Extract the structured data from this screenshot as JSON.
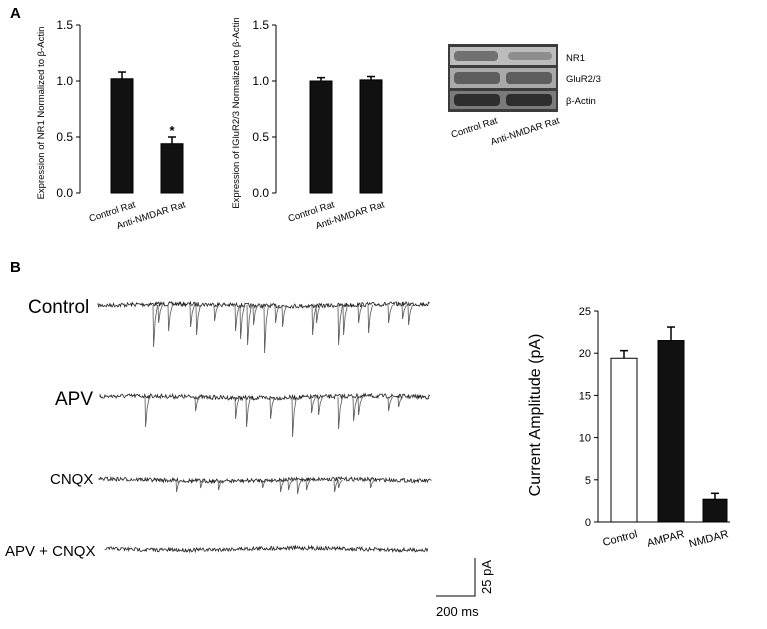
{
  "panels": {
    "a_label": "A",
    "b_label": "B"
  },
  "chart_data": [
    {
      "type": "bar",
      "ylabel": "Expression of NR1 Normalized to β-Actin",
      "categories": [
        "Control Rat",
        "Anti-NMDAR Rat"
      ],
      "values": [
        1.02,
        0.44
      ],
      "errors": [
        0.06,
        0.06
      ],
      "ylim": [
        0,
        1.5
      ],
      "yticks": [
        "0.0",
        "0.5",
        "1.0",
        "1.5"
      ],
      "annotations": [
        "",
        "*"
      ],
      "bar_colors": [
        "#111111",
        "#111111"
      ]
    },
    {
      "type": "bar",
      "ylabel": "Expression of IGluR2/3 Normalized to β-Actin",
      "categories": [
        "Control Rat",
        "Anti-NMDAR Rat"
      ],
      "values": [
        1.0,
        1.01
      ],
      "errors": [
        0.03,
        0.03
      ],
      "ylim": [
        0,
        1.5
      ],
      "yticks": [
        "0.0",
        "0.5",
        "1.0",
        "1.5"
      ],
      "bar_colors": [
        "#111111",
        "#111111"
      ]
    },
    {
      "type": "bar",
      "ylabel": "Current Amplitude (pA)",
      "categories": [
        "Control",
        "AMPAR",
        "NMDAR"
      ],
      "values": [
        19.4,
        21.5,
        2.7
      ],
      "errors": [
        0.9,
        1.6,
        0.7
      ],
      "ylim": [
        0,
        25
      ],
      "yticks": [
        "0",
        "5",
        "10",
        "15",
        "20",
        "25"
      ],
      "bar_colors": [
        "#ffffff",
        "#111111",
        "#111111"
      ]
    }
  ],
  "blot": {
    "bands": [
      "NR1",
      "GluR2/3",
      "β-Actin"
    ],
    "lanes": [
      "Control Rat",
      "Anti-NMDAR Rat"
    ]
  },
  "traces": {
    "labels": [
      "Control",
      "APV",
      "CNQX",
      "APV + CNQX"
    ],
    "scalebar_y": "25 pA",
    "scalebar_x": "200 ms"
  }
}
